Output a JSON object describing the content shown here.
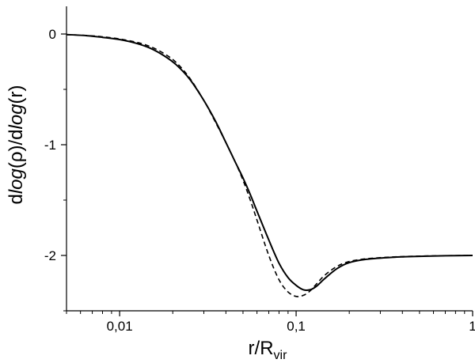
{
  "chart_data": {
    "type": "line",
    "xscale": "log",
    "xlim": [
      0.005,
      1
    ],
    "ylim": [
      -2.5,
      0.25
    ],
    "xlabel": {
      "main": "r/R",
      "sub": "vir"
    },
    "ylabel": {
      "p1": "d",
      "p2": "log",
      "p3": "(",
      "p4": "ρ",
      "p5": ")/d",
      "p6": "log",
      "p7": "(r)"
    },
    "x_ticks": [
      {
        "value": 0.01,
        "label": "0,01"
      },
      {
        "value": 0.1,
        "label": "0,1"
      },
      {
        "value": 1,
        "label": "1"
      }
    ],
    "y_ticks": [
      {
        "value": 0,
        "label": "0"
      },
      {
        "value": -1,
        "label": "-1"
      },
      {
        "value": -2,
        "label": "-2"
      }
    ],
    "grid": false,
    "legend": "none",
    "series": [
      {
        "style": "solid",
        "color": "#000000",
        "points": [
          [
            0.005,
            -0.005
          ],
          [
            0.0065,
            -0.015
          ],
          [
            0.008,
            -0.03
          ],
          [
            0.01,
            -0.05
          ],
          [
            0.0125,
            -0.085
          ],
          [
            0.015,
            -0.13
          ],
          [
            0.018,
            -0.2
          ],
          [
            0.021,
            -0.28
          ],
          [
            0.025,
            -0.41
          ],
          [
            0.03,
            -0.6
          ],
          [
            0.035,
            -0.79
          ],
          [
            0.04,
            -0.98
          ],
          [
            0.045,
            -1.15
          ],
          [
            0.05,
            -1.3
          ],
          [
            0.055,
            -1.45
          ],
          [
            0.06,
            -1.6
          ],
          [
            0.07,
            -1.86
          ],
          [
            0.08,
            -2.07
          ],
          [
            0.09,
            -2.2
          ],
          [
            0.1,
            -2.27
          ],
          [
            0.11,
            -2.31
          ],
          [
            0.12,
            -2.31
          ],
          [
            0.13,
            -2.28
          ],
          [
            0.145,
            -2.21
          ],
          [
            0.17,
            -2.12
          ],
          [
            0.2,
            -2.065
          ],
          [
            0.25,
            -2.035
          ],
          [
            0.35,
            -2.017
          ],
          [
            0.5,
            -2.008
          ],
          [
            0.7,
            -2.003
          ],
          [
            1,
            -2.0
          ]
        ]
      },
      {
        "style": "dashed",
        "color": "#000000",
        "points": [
          [
            0.005,
            -0.005
          ],
          [
            0.0065,
            -0.013
          ],
          [
            0.008,
            -0.025
          ],
          [
            0.01,
            -0.045
          ],
          [
            0.0125,
            -0.075
          ],
          [
            0.015,
            -0.115
          ],
          [
            0.018,
            -0.18
          ],
          [
            0.021,
            -0.26
          ],
          [
            0.025,
            -0.4
          ],
          [
            0.03,
            -0.6
          ],
          [
            0.035,
            -0.8
          ],
          [
            0.04,
            -0.98
          ],
          [
            0.045,
            -1.15
          ],
          [
            0.05,
            -1.32
          ],
          [
            0.055,
            -1.5
          ],
          [
            0.06,
            -1.68
          ],
          [
            0.07,
            -2.0
          ],
          [
            0.08,
            -2.22
          ],
          [
            0.09,
            -2.33
          ],
          [
            0.1,
            -2.37
          ],
          [
            0.11,
            -2.36
          ],
          [
            0.12,
            -2.32
          ],
          [
            0.13,
            -2.26
          ],
          [
            0.145,
            -2.18
          ],
          [
            0.17,
            -2.1
          ],
          [
            0.2,
            -2.055
          ],
          [
            0.25,
            -2.03
          ],
          [
            0.35,
            -2.014
          ],
          [
            0.5,
            -2.006
          ],
          [
            0.7,
            -2.002
          ],
          [
            1,
            -2.0
          ]
        ]
      }
    ]
  }
}
